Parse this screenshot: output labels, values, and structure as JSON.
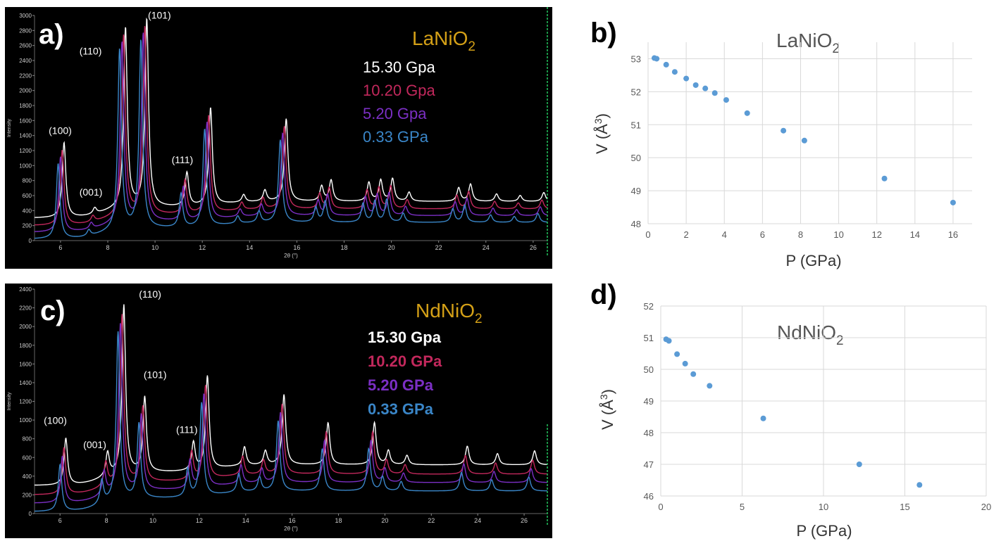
{
  "chart_data": [
    {
      "id": "a",
      "type": "line",
      "panel_label": "a)",
      "compound": "LaNiO",
      "compound_sub": "2",
      "xlabel": "2θ (°)",
      "ylabel": "Intensity",
      "xlim": [
        4.9,
        26.6
      ],
      "ylim": [
        0,
        3000
      ],
      "x_ticks": [
        6,
        8,
        10,
        12,
        14,
        16,
        18,
        20,
        22,
        24,
        26
      ],
      "y_ticks": [
        0,
        200,
        400,
        600,
        800,
        1000,
        1200,
        1400,
        1600,
        1800,
        2000,
        2200,
        2400,
        2600,
        2800,
        3000
      ],
      "legend": [
        {
          "label": "15.30 Gpa",
          "color": "#ffffff"
        },
        {
          "label": "10.20 Gpa",
          "color": "#c2285c"
        },
        {
          "label": "5.20 Gpa",
          "color": "#7b2fc4"
        },
        {
          "label": "0.33 GPa",
          "color": "#3a86c8"
        }
      ],
      "annotations": [
        {
          "text": "(100)",
          "x": 5.5,
          "y": 1420
        },
        {
          "text": "(001)",
          "x": 6.8,
          "y": 600
        },
        {
          "text": "(110)",
          "x": 6.8,
          "y": 2480
        },
        {
          "text": "(101)",
          "x": 9.7,
          "y": 2960
        },
        {
          "text": "(111)",
          "x": 10.7,
          "y": 1030
        }
      ],
      "series": [
        {
          "name": "15.30 Gpa",
          "color": "#ffffff",
          "baseline": 300,
          "shift": 0.15,
          "peaks": [
            [
              6.0,
              1000
            ],
            [
              7.3,
              80
            ],
            [
              8.6,
              2400
            ],
            [
              9.5,
              2500
            ],
            [
              11.2,
              450
            ],
            [
              12.2,
              1300
            ],
            [
              13.6,
              100
            ],
            [
              14.5,
              150
            ],
            [
              15.4,
              1100
            ],
            [
              16.9,
              200
            ],
            [
              17.3,
              280
            ],
            [
              18.9,
              250
            ],
            [
              19.4,
              280
            ],
            [
              19.9,
              300
            ],
            [
              20.6,
              120
            ],
            [
              22.7,
              180
            ],
            [
              23.2,
              230
            ],
            [
              24.3,
              100
            ],
            [
              25.3,
              80
            ],
            [
              26.3,
              120
            ]
          ]
        },
        {
          "name": "10.20 Gpa",
          "color": "#c2285c",
          "baseline": 200,
          "shift": 0.07,
          "peaks": [
            [
              6.0,
              1000
            ],
            [
              7.3,
              80
            ],
            [
              8.6,
              2400
            ],
            [
              9.5,
              2500
            ],
            [
              11.2,
              450
            ],
            [
              12.2,
              1300
            ],
            [
              13.6,
              100
            ],
            [
              14.5,
              150
            ],
            [
              15.4,
              1100
            ],
            [
              16.9,
              200
            ],
            [
              17.3,
              280
            ],
            [
              18.9,
              250
            ],
            [
              19.4,
              280
            ],
            [
              19.9,
              300
            ],
            [
              20.6,
              120
            ],
            [
              22.7,
              180
            ],
            [
              23.2,
              230
            ],
            [
              24.3,
              100
            ],
            [
              25.3,
              80
            ],
            [
              26.3,
              120
            ]
          ]
        },
        {
          "name": "5.20 Gpa",
          "color": "#7b2fc4",
          "baseline": 110,
          "shift": 0.0,
          "peaks": [
            [
              6.0,
              1000
            ],
            [
              7.3,
              80
            ],
            [
              8.6,
              2400
            ],
            [
              9.5,
              2500
            ],
            [
              11.2,
              450
            ],
            [
              12.2,
              1300
            ],
            [
              13.6,
              100
            ],
            [
              14.5,
              150
            ],
            [
              15.4,
              1100
            ],
            [
              16.9,
              200
            ],
            [
              17.3,
              280
            ],
            [
              18.9,
              250
            ],
            [
              19.4,
              280
            ],
            [
              19.9,
              300
            ],
            [
              20.6,
              120
            ],
            [
              22.7,
              180
            ],
            [
              23.2,
              230
            ],
            [
              24.3,
              100
            ],
            [
              25.3,
              80
            ],
            [
              26.3,
              120
            ]
          ]
        },
        {
          "name": "0.33 GPa",
          "color": "#3a86c8",
          "baseline": 20,
          "shift": -0.1,
          "peaks": [
            [
              6.0,
              1000
            ],
            [
              7.3,
              80
            ],
            [
              8.6,
              2400
            ],
            [
              9.5,
              2500
            ],
            [
              11.2,
              450
            ],
            [
              12.2,
              1300
            ],
            [
              13.6,
              100
            ],
            [
              14.5,
              150
            ],
            [
              15.4,
              1100
            ],
            [
              16.9,
              200
            ],
            [
              17.3,
              280
            ],
            [
              18.9,
              250
            ],
            [
              19.4,
              280
            ],
            [
              19.9,
              300
            ],
            [
              20.6,
              120
            ],
            [
              22.7,
              180
            ],
            [
              23.2,
              230
            ],
            [
              24.3,
              100
            ],
            [
              25.3,
              80
            ],
            [
              26.3,
              120
            ]
          ]
        }
      ]
    },
    {
      "id": "b",
      "type": "scatter",
      "panel_label": "b)",
      "compound": "LaNiO",
      "compound_sub": "2",
      "xlabel": "P (GPa)",
      "ylabel": "V (Å",
      "ylabel_sup": "3",
      "ylabel_end": ")",
      "xlim": [
        0,
        17
      ],
      "ylim": [
        48,
        53.5
      ],
      "x_ticks": [
        0,
        2,
        4,
        6,
        8,
        10,
        12,
        14,
        16
      ],
      "y_ticks": [
        48,
        49,
        50,
        51,
        52,
        53
      ],
      "grid": true,
      "color": "#5b9bd5",
      "points": [
        [
          0.33,
          53.02
        ],
        [
          0.45,
          53.0
        ],
        [
          0.95,
          52.82
        ],
        [
          1.4,
          52.6
        ],
        [
          2.0,
          52.4
        ],
        [
          2.5,
          52.2
        ],
        [
          3.0,
          52.1
        ],
        [
          3.5,
          51.96
        ],
        [
          4.1,
          51.75
        ],
        [
          5.2,
          51.35
        ],
        [
          7.1,
          50.82
        ],
        [
          8.2,
          50.52
        ],
        [
          12.4,
          49.37
        ],
        [
          16.0,
          48.64
        ]
      ]
    },
    {
      "id": "c",
      "type": "line",
      "panel_label": "c)",
      "compound": "NdNiO",
      "compound_sub": "2",
      "xlabel": "2θ (°)",
      "ylabel": "Intensity",
      "xlim": [
        4.9,
        27.0
      ],
      "ylim": [
        0,
        2400
      ],
      "x_ticks": [
        6,
        8,
        10,
        12,
        14,
        16,
        18,
        20,
        22,
        24,
        26
      ],
      "y_ticks": [
        0,
        200,
        400,
        600,
        800,
        1000,
        1200,
        1400,
        1600,
        1800,
        2000,
        2200,
        2400
      ],
      "legend": [
        {
          "label": "15.30 Gpa",
          "color": "#ffffff"
        },
        {
          "label": "10.20 GPa",
          "color": "#c2285c"
        },
        {
          "label": "5.20 GPa",
          "color": "#7b2fc4"
        },
        {
          "label": "0.33 GPa",
          "color": "#3a86c8"
        }
      ],
      "annotations": [
        {
          "text": "(100)",
          "x": 5.3,
          "y": 960
        },
        {
          "text": "(001)",
          "x": 7.0,
          "y": 700
        },
        {
          "text": "(110)",
          "x": 9.4,
          "y": 2310
        },
        {
          "text": "(101)",
          "x": 9.6,
          "y": 1450
        },
        {
          "text": "(111)",
          "x": 11.0,
          "y": 860
        }
      ],
      "series": [
        {
          "name": "15.30 Gpa",
          "color": "#ffffff",
          "baseline": 300,
          "shift": 0.15,
          "peaks": [
            [
              6.1,
              500
            ],
            [
              7.9,
              250
            ],
            [
              8.6,
              1800
            ],
            [
              9.5,
              800
            ],
            [
              11.6,
              300
            ],
            [
              12.2,
              1000
            ],
            [
              13.8,
              200
            ],
            [
              14.7,
              150
            ],
            [
              15.5,
              750
            ],
            [
              17.4,
              450
            ],
            [
              19.4,
              450
            ],
            [
              20.0,
              150
            ],
            [
              20.8,
              100
            ],
            [
              23.4,
              200
            ],
            [
              24.7,
              120
            ],
            [
              26.3,
              150
            ]
          ]
        },
        {
          "name": "10.20 GPa",
          "color": "#c2285c",
          "baseline": 200,
          "shift": 0.07,
          "peaks": [
            [
              6.1,
              500
            ],
            [
              7.9,
              250
            ],
            [
              8.6,
              1800
            ],
            [
              9.5,
              800
            ],
            [
              11.6,
              300
            ],
            [
              12.2,
              1000
            ],
            [
              13.8,
              200
            ],
            [
              14.7,
              150
            ],
            [
              15.5,
              750
            ],
            [
              17.4,
              450
            ],
            [
              19.4,
              450
            ],
            [
              20.0,
              150
            ],
            [
              20.8,
              100
            ],
            [
              23.4,
              200
            ],
            [
              24.7,
              120
            ],
            [
              26.3,
              150
            ]
          ]
        },
        {
          "name": "5.20 GPa",
          "color": "#7b2fc4",
          "baseline": 110,
          "shift": 0.0,
          "peaks": [
            [
              6.1,
              500
            ],
            [
              7.9,
              250
            ],
            [
              8.6,
              1800
            ],
            [
              9.5,
              800
            ],
            [
              11.6,
              300
            ],
            [
              12.2,
              1000
            ],
            [
              13.8,
              200
            ],
            [
              14.7,
              150
            ],
            [
              15.5,
              750
            ],
            [
              17.4,
              450
            ],
            [
              19.4,
              450
            ],
            [
              20.0,
              150
            ],
            [
              20.8,
              100
            ],
            [
              23.4,
              200
            ],
            [
              24.7,
              120
            ],
            [
              26.3,
              150
            ]
          ]
        },
        {
          "name": "0.33 GPa",
          "color": "#3a86c8",
          "baseline": 20,
          "shift": -0.1,
          "peaks": [
            [
              6.1,
              500
            ],
            [
              7.9,
              250
            ],
            [
              8.6,
              1800
            ],
            [
              9.5,
              800
            ],
            [
              11.6,
              300
            ],
            [
              12.2,
              1000
            ],
            [
              13.8,
              200
            ],
            [
              14.7,
              150
            ],
            [
              15.5,
              750
            ],
            [
              17.4,
              450
            ],
            [
              19.4,
              450
            ],
            [
              20.0,
              150
            ],
            [
              20.8,
              100
            ],
            [
              23.4,
              200
            ],
            [
              24.7,
              120
            ],
            [
              26.3,
              150
            ]
          ]
        }
      ]
    },
    {
      "id": "d",
      "type": "scatter",
      "panel_label": "d)",
      "compound": "NdNiO",
      "compound_sub": "2",
      "xlabel": "P (GPa)",
      "ylabel": "V (Å",
      "ylabel_sup": "3",
      "ylabel_end": ")",
      "xlim": [
        0,
        20
      ],
      "ylim": [
        46,
        52
      ],
      "x_ticks": [
        0,
        5,
        10,
        15,
        20
      ],
      "y_ticks": [
        46,
        47,
        48,
        49,
        50,
        51,
        52
      ],
      "grid": true,
      "color": "#5b9bd5",
      "points": [
        [
          0.33,
          50.95
        ],
        [
          0.5,
          50.9
        ],
        [
          1.0,
          50.48
        ],
        [
          1.5,
          50.18
        ],
        [
          2.0,
          49.85
        ],
        [
          3.0,
          49.48
        ],
        [
          6.3,
          48.45
        ],
        [
          12.2,
          47.0
        ],
        [
          15.9,
          46.35
        ]
      ]
    }
  ]
}
